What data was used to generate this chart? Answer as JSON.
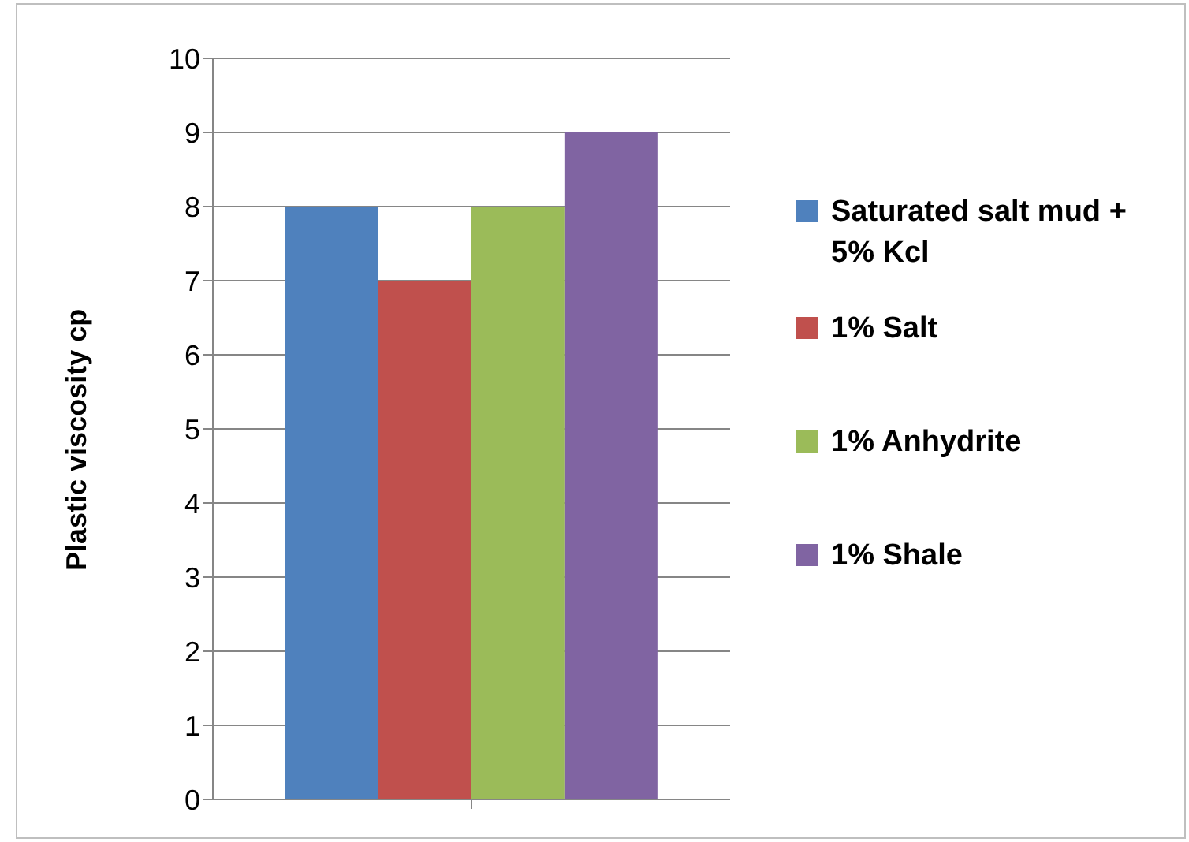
{
  "chart_data": {
    "type": "bar",
    "ylabel": "Plastic viscosity cp",
    "categories": [
      null
    ],
    "series": [
      {
        "name": "Saturated salt mud + 5% Kcl",
        "color": "#4f81bd",
        "values": [
          8
        ]
      },
      {
        "name": "1% Salt",
        "color": "#c0504d",
        "values": [
          7
        ]
      },
      {
        "name": "1% Anhydrite",
        "color": "#9bbb59",
        "values": [
          8
        ]
      },
      {
        "name": "1% Shale",
        "color": "#8064a2",
        "values": [
          9
        ]
      }
    ],
    "ylim": [
      0,
      10
    ],
    "yticks": [
      0,
      1,
      2,
      3,
      4,
      5,
      6,
      7,
      8,
      9,
      10
    ],
    "grid": "y",
    "legend": "right"
  }
}
